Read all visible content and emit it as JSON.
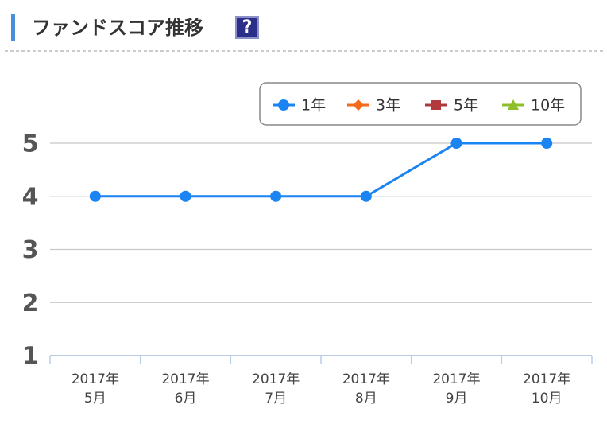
{
  "chart_data": {
    "type": "line",
    "title": "ファンドスコア推移",
    "help_icon": "?",
    "categories": [
      [
        "2017年",
        "5月"
      ],
      [
        "2017年",
        "6月"
      ],
      [
        "2017年",
        "7月"
      ],
      [
        "2017年",
        "8月"
      ],
      [
        "2017年",
        "9月"
      ],
      [
        "2017年",
        "10月"
      ]
    ],
    "series": [
      {
        "name": "1年",
        "color": "#1a84f2",
        "marker": "circle",
        "values": [
          4,
          4,
          4,
          4,
          5,
          5
        ]
      },
      {
        "name": "3年",
        "color": "#f26b1d",
        "marker": "diamond",
        "values": [
          null,
          null,
          null,
          null,
          null,
          null
        ]
      },
      {
        "name": "5年",
        "color": "#b0393b",
        "marker": "square",
        "values": [
          null,
          null,
          null,
          null,
          null,
          null
        ]
      },
      {
        "name": "10年",
        "color": "#8dbf2a",
        "marker": "triangle",
        "values": [
          null,
          null,
          null,
          null,
          null,
          null
        ]
      }
    ],
    "ylim": [
      1,
      5
    ],
    "yticks": [
      1,
      2,
      3,
      4,
      5
    ],
    "grid": true,
    "legend": "top-right"
  }
}
